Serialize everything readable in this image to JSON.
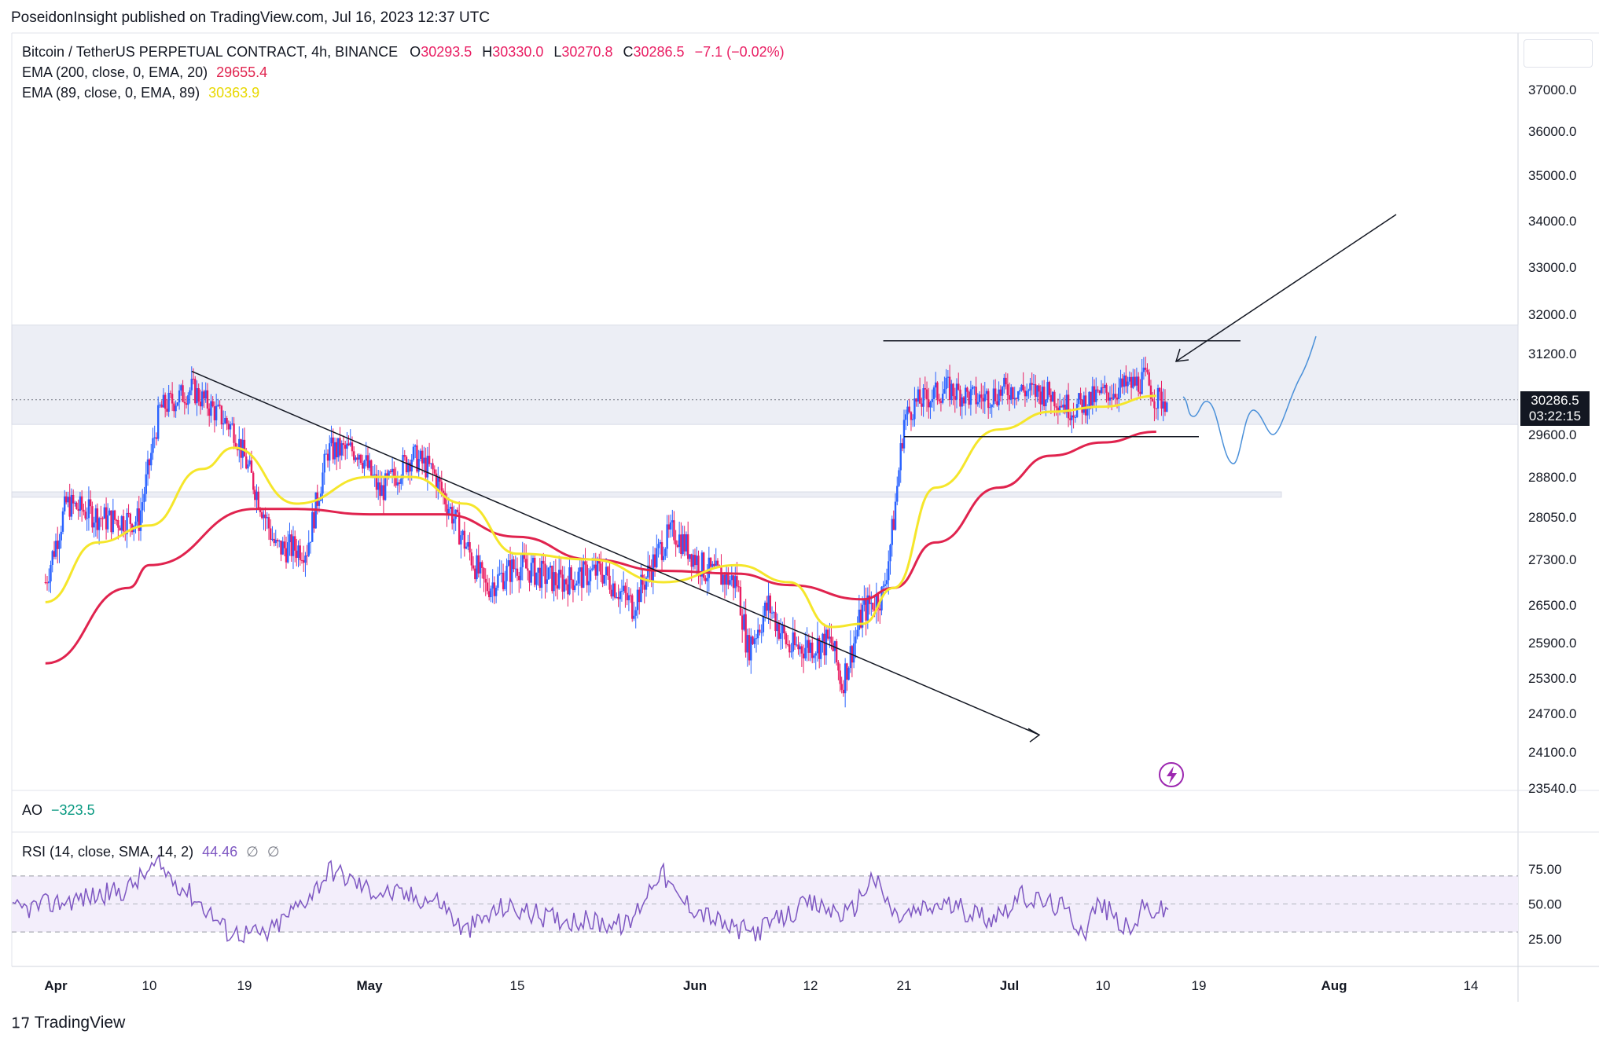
{
  "header": {
    "published": "PoseidonInsight published on TradingView.com, Jul 16, 2023 12:37 UTC"
  },
  "legend": {
    "symbol": "Bitcoin / TetherUS PERPETUAL CONTRACT, 4h, BINANCE",
    "open_key": "O",
    "open": "30293.5",
    "high_key": "H",
    "high": "30330.0",
    "low_key": "L",
    "low": "30270.8",
    "close_key": "C",
    "close": "30286.5",
    "change": "−7.1 (−0.02%)",
    "ema200_label": "EMA (200, close, 0, EMA, 20)",
    "ema200_value": "29655.4",
    "ema89_label": "EMA (89, close, 0, EMA, 89)",
    "ema89_value": "30363.9"
  },
  "price_tag": {
    "price": "30286.5",
    "countdown": "03:22:15"
  },
  "ao": {
    "label": "AO",
    "value": "−323.5"
  },
  "rsi": {
    "label": "RSI (14, close, SMA, 14, 2)",
    "value": "44.46",
    "extra1": "∅",
    "extra2": "∅"
  },
  "footer": {
    "brand": "TradingView"
  },
  "colors": {
    "up": "#2962ff",
    "down": "#e91e63",
    "ema200": "#e0234e",
    "ema89": "#f5e62b",
    "rsi": "#7e57c2",
    "zone": "#eceef5",
    "projection": "#4a90d9"
  },
  "chart_data": {
    "type": "line",
    "price_axis": {
      "ticks": [
        "37000.0",
        "36000.0",
        "35000.0",
        "34000.0",
        "33000.0",
        "32000.0",
        "31200.0",
        "29600.0",
        "28800.0",
        "28050.0",
        "27300.0",
        "26500.0",
        "25900.0",
        "25300.0",
        "24700.0",
        "24100.0",
        "23540.0"
      ],
      "ylim": [
        23540,
        37300
      ]
    },
    "rsi_axis": {
      "ticks": [
        "75.00",
        "50.00",
        "25.00"
      ],
      "ylim": [
        0,
        100
      ]
    },
    "time_axis": {
      "ticks": [
        "Apr",
        "10",
        "19",
        "May",
        "15",
        "Jun",
        "12",
        "21",
        "Jul",
        "10",
        "19",
        "Aug",
        "14"
      ],
      "tick_dates": [
        "2023-04-01",
        "2023-04-10",
        "2023-04-19",
        "2023-05-01",
        "2023-05-15",
        "2023-06-01",
        "2023-06-12",
        "2023-06-21",
        "2023-07-01",
        "2023-07-10",
        "2023-07-19",
        "2023-08-01",
        "2023-08-14"
      ]
    },
    "series": [
      {
        "name": "EMA (200, close, 0, EMA, 20)",
        "x": [
          "2023-03-31",
          "2023-04-08",
          "2023-04-10",
          "2023-04-20",
          "2023-04-24",
          "2023-05-01",
          "2023-05-08",
          "2023-05-15",
          "2023-05-22",
          "2023-05-29",
          "2023-06-05",
          "2023-06-10",
          "2023-06-17",
          "2023-06-20",
          "2023-06-24",
          "2023-06-30",
          "2023-07-05",
          "2023-07-10",
          "2023-07-15"
        ],
        "values": [
          25550,
          26800,
          27200,
          28200,
          28200,
          28100,
          28100,
          27700,
          27300,
          27100,
          27050,
          26850,
          26600,
          26800,
          27600,
          28600,
          29200,
          29450,
          29655
        ]
      },
      {
        "name": "EMA (89, close, 0, EMA, 89)",
        "x": [
          "2023-03-31",
          "2023-04-05",
          "2023-04-10",
          "2023-04-15",
          "2023-04-18",
          "2023-04-24",
          "2023-05-01",
          "2023-05-05",
          "2023-05-10",
          "2023-05-15",
          "2023-05-22",
          "2023-05-29",
          "2023-06-05",
          "2023-06-10",
          "2023-06-14",
          "2023-06-17",
          "2023-06-20",
          "2023-06-24",
          "2023-06-30",
          "2023-07-05",
          "2023-07-10",
          "2023-07-15"
        ],
        "values": [
          26550,
          27600,
          27900,
          28950,
          29350,
          28300,
          28800,
          28800,
          28300,
          27400,
          27300,
          26900,
          27200,
          26900,
          26150,
          26200,
          26800,
          28600,
          29700,
          30050,
          30150,
          30363.9
        ]
      }
    ],
    "annotations": {
      "zone_upper": [
        29800,
        31780
      ],
      "zone_lower": [
        28420,
        28520
      ],
      "range_top": {
        "x": [
          "2023-06-19",
          "2023-07-23"
        ],
        "y": 31460
      },
      "range_bottom": {
        "x": [
          "2023-06-21",
          "2023-07-19"
        ],
        "y": 29560
      },
      "trendline": {
        "x": [
          "2023-04-14",
          "2023-06-09"
        ],
        "y": [
          30850,
          26210
        ]
      },
      "arrow_up": {
        "x": [
          "2023-07-15",
          "2023-07-28"
        ],
        "y": [
          30950,
          34200
        ]
      },
      "last_price_line": 30286.5
    }
  }
}
